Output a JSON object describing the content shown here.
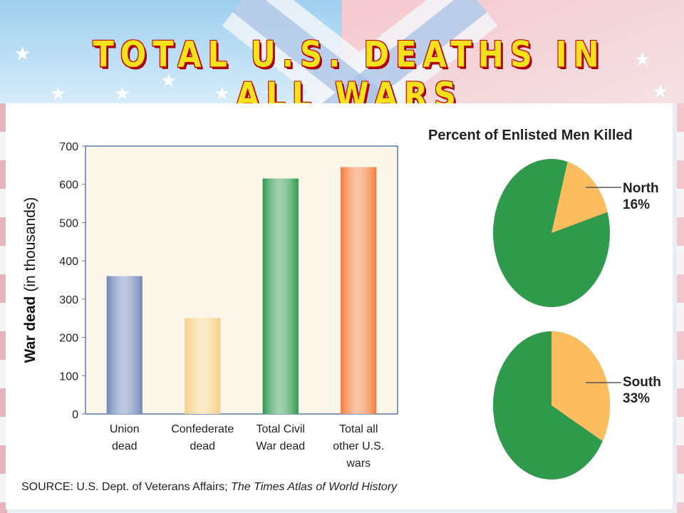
{
  "title": "TOTAL U.S. DEATHS IN ALL WARS",
  "colors": {
    "title_fill": "#f6e21a",
    "title_outline": "#c00000",
    "pie_green": "#2f9a4c",
    "pie_orange": "#fbbd5e"
  },
  "icons": {
    "flag_star": "★"
  },
  "chart_data": [
    {
      "type": "bar",
      "ylabel_bold": "War dead",
      "ylabel_rest": "(in thousands)",
      "ylim": [
        0,
        700
      ],
      "yticks": [
        0,
        100,
        200,
        300,
        400,
        500,
        600,
        700
      ],
      "grid": false,
      "categories": [
        [
          "Union",
          "dead"
        ],
        [
          "Confederate",
          "dead"
        ],
        [
          "Total Civil",
          "War dead"
        ],
        [
          "Total all",
          "other U.S.",
          "wars"
        ]
      ],
      "values": [
        360,
        250,
        615,
        645
      ],
      "bar_colors": [
        "#6f86b8",
        "#f6cf85",
        "#2d9a4d",
        "#f47b3a"
      ]
    },
    {
      "type": "pie",
      "title": "Percent of Enlisted Men Killed",
      "pies": [
        {
          "label": "North",
          "value_text": "16%",
          "value": 16
        },
        {
          "label": "South",
          "value_text": "33%",
          "value": 33
        }
      ]
    }
  ],
  "source": {
    "prefix": "SOURCE: U.S. Dept. of Veterans Affairs; ",
    "italic": "The Times Atlas of World History"
  }
}
